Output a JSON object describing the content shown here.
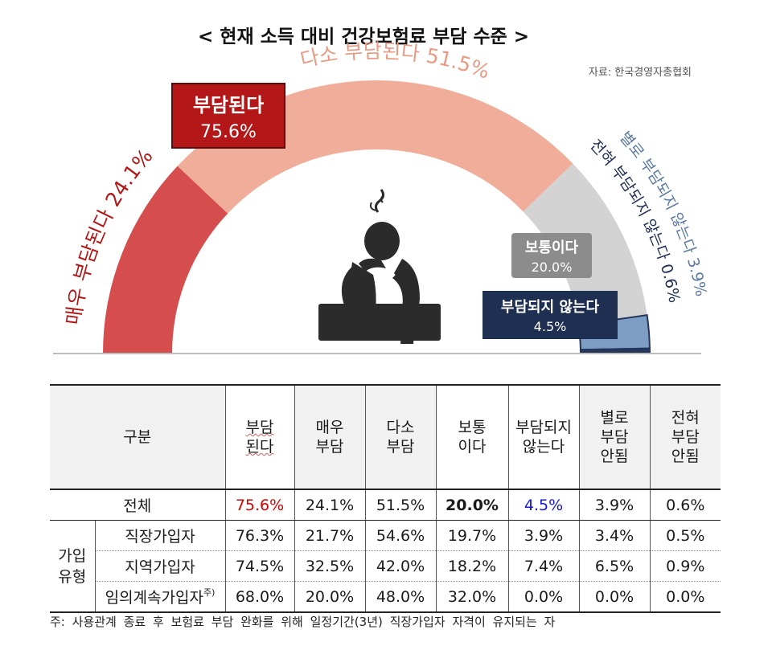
{
  "chart_data": {
    "type": "semi-donut",
    "title": "< 현재 소득 대비 건강보험료 부담 수준 >",
    "source": "자료: 한국경영자총협회",
    "segments": [
      {
        "label": "매우 부담된다 24.1%",
        "name": "매우 부담된다",
        "value": 24.1,
        "color": "#d64d4d"
      },
      {
        "label": "다소 부담된다 51.5%",
        "name": "다소 부담된다",
        "value": 51.5,
        "color": "#f0ae9a"
      },
      {
        "label": "보통이다",
        "name": "보통이다",
        "value": 20.0,
        "color": "#d3d3d3"
      },
      {
        "label": "별로 부담되지 않는다 3.9%",
        "name": "별로 부담되지 않는다",
        "value": 3.9,
        "color": "#7d9dc4"
      },
      {
        "label": "전혀 부담되지 않는다 0.6%",
        "name": "전혀 부담되지 않는다",
        "value": 0.6,
        "color": "#24365a"
      }
    ],
    "callouts": {
      "burden": {
        "label": "부담된다",
        "value": "75.6%",
        "color": "#b31717"
      },
      "normal": {
        "label": "보통이다",
        "value": "20.0%",
        "color": "#8c8c8c"
      },
      "not_burden": {
        "label": "부담되지 않는다",
        "value": "4.5%",
        "color": "#1f2f52"
      }
    }
  },
  "table": {
    "headers": [
      "구분",
      "부담\n된다",
      "매우\n부담",
      "다소\n부담",
      "보통\n이다",
      "부담되지\n않는다",
      "별로\n부담\n안됨",
      "전혀\n부담\n안됨"
    ],
    "group_label": "가입\n유형",
    "total": {
      "label": "전체",
      "values": [
        "75.6%",
        "24.1%",
        "51.5%",
        "20.0%",
        "4.5%",
        "3.9%",
        "0.6%"
      ]
    },
    "rows": [
      {
        "label": "직장가입자",
        "values": [
          "76.3%",
          "21.7%",
          "54.6%",
          "19.7%",
          "3.9%",
          "3.4%",
          "0.5%"
        ]
      },
      {
        "label": "지역가입자",
        "values": [
          "74.5%",
          "32.5%",
          "42.0%",
          "18.2%",
          "7.4%",
          "6.5%",
          "0.9%"
        ]
      },
      {
        "label": "임의계속가입자",
        "sup": "주)",
        "values": [
          "68.0%",
          "20.0%",
          "48.0%",
          "32.0%",
          "0.0%",
          "0.0%",
          "0.0%"
        ]
      }
    ]
  },
  "note": "주: 사용관계 종료 후 보험료 부담 완화를 위해 일정기간(3년) 직장가입자 자격이 유지되는 자"
}
